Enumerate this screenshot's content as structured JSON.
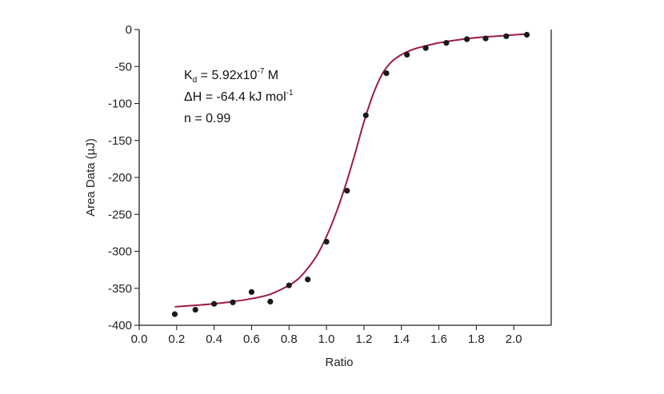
{
  "chart_data": {
    "type": "scatter",
    "xlabel": "Ratio",
    "ylabel": "Area Data (µJ)",
    "xlim": [
      0.0,
      2.2
    ],
    "ylim": [
      -400,
      0
    ],
    "x_ticks": [
      0.0,
      0.2,
      0.4,
      0.6,
      0.8,
      1.0,
      1.2,
      1.4,
      1.6,
      1.8,
      2.0
    ],
    "x_tick_labels": [
      "0.0",
      "0.2",
      "0.4",
      "0.6",
      "0.8",
      "1.0",
      "1.2",
      "1.4",
      "1.6",
      "1.8",
      "2.0"
    ],
    "y_ticks": [
      0,
      -50,
      -100,
      -150,
      -200,
      -250,
      -300,
      -350,
      -400
    ],
    "y_tick_labels": [
      "0",
      "-50",
      "-100",
      "-150",
      "-200",
      "-250",
      "-300",
      "-350",
      "-400"
    ],
    "grid": false,
    "series": [
      {
        "kind": "points",
        "color": "#1a1a1a",
        "x": [
          0.19,
          0.3,
          0.4,
          0.5,
          0.6,
          0.7,
          0.8,
          0.9,
          1.0,
          1.11,
          1.21,
          1.32,
          1.43,
          1.53,
          1.64,
          1.75,
          1.85,
          1.96,
          2.07
        ],
        "y": [
          -385,
          -379,
          -371,
          -369,
          -355,
          -368,
          -346,
          -338,
          -287,
          -218,
          -116,
          -59,
          -34,
          -25,
          -18,
          -13,
          -12,
          -9,
          -7
        ]
      },
      {
        "kind": "fit",
        "color": "#9e1b3f",
        "x": [
          0.19,
          0.3,
          0.4,
          0.5,
          0.6,
          0.7,
          0.8,
          0.85,
          0.9,
          0.95,
          1.0,
          1.05,
          1.1,
          1.15,
          1.2,
          1.25,
          1.3,
          1.35,
          1.4,
          1.45,
          1.5,
          1.6,
          1.7,
          1.8,
          1.9,
          2.07
        ],
        "y": [
          -375,
          -373,
          -371,
          -368,
          -364,
          -358,
          -346,
          -337,
          -323,
          -305,
          -280,
          -249,
          -212,
          -170,
          -125,
          -87,
          -59,
          -43,
          -34,
          -28,
          -24,
          -18,
          -14,
          -11,
          -9,
          -6
        ]
      }
    ],
    "annotations": [
      {
        "parts": [
          {
            "t": "K",
            "s": "normal"
          },
          {
            "t": "d",
            "s": "sub"
          },
          {
            "t": " = 5.92x10",
            "s": "normal"
          },
          {
            "t": "-7",
            "s": "sup"
          },
          {
            "t": " M",
            "s": "normal"
          }
        ]
      },
      {
        "parts": [
          {
            "t": "ΔH = -64.4 kJ mol",
            "s": "normal"
          },
          {
            "t": "-1",
            "s": "sup"
          }
        ]
      },
      {
        "parts": [
          {
            "t": "n = 0.99",
            "s": "normal"
          }
        ]
      }
    ]
  }
}
